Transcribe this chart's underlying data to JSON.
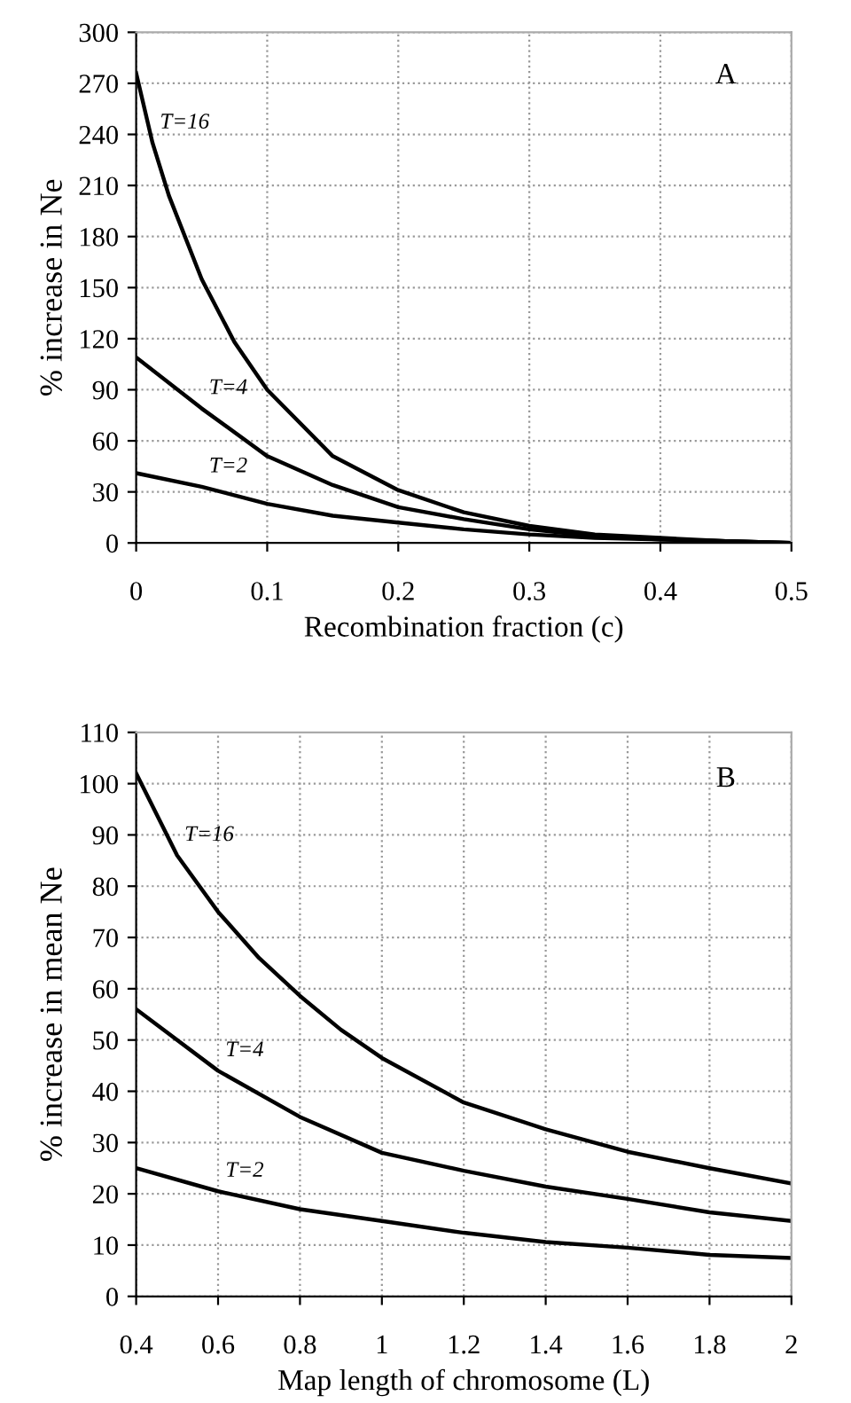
{
  "chart_data": [
    {
      "type": "line",
      "xlabel": "Recombination fraction (c)",
      "ylabel": "% increase in Ne",
      "annotations": [
        "A"
      ],
      "xlim": [
        0,
        0.5
      ],
      "xticks": [
        0,
        0.1,
        0.2,
        0.3,
        0.4,
        0.5
      ],
      "ylim": [
        0,
        300
      ],
      "yticks": [
        0,
        30,
        60,
        90,
        120,
        150,
        180,
        210,
        240,
        270,
        300
      ],
      "grid": true,
      "legend": false,
      "series": [
        {
          "name": "T=16",
          "color": "#000000",
          "x": [
            0,
            0.0125,
            0.025,
            0.05,
            0.075,
            0.1,
            0.15,
            0.2,
            0.25,
            0.3,
            0.35,
            0.4,
            0.45,
            0.5
          ],
          "values": [
            276,
            235,
            204,
            155,
            118,
            90,
            51,
            31,
            18,
            10,
            5,
            3,
            1,
            0
          ]
        },
        {
          "name": "T=4",
          "color": "#000000",
          "x": [
            0,
            0.05,
            0.1,
            0.15,
            0.2,
            0.25,
            0.3,
            0.35,
            0.4,
            0.45,
            0.5
          ],
          "values": [
            109,
            79,
            51,
            34,
            21,
            14,
            8,
            4,
            2,
            1,
            0
          ]
        },
        {
          "name": "T=2",
          "color": "#000000",
          "x": [
            0,
            0.05,
            0.1,
            0.15,
            0.2,
            0.25,
            0.3,
            0.35,
            0.4,
            0.45,
            0.5
          ],
          "values": [
            41,
            33,
            23,
            16,
            12,
            8,
            5,
            3,
            2,
            1,
            0
          ]
        }
      ]
    },
    {
      "type": "line",
      "xlabel": "Map length of chromosome (L)",
      "ylabel": "% increase in mean Ne",
      "annotations": [
        "B"
      ],
      "xlim": [
        0.4,
        2
      ],
      "xticks": [
        0.4,
        0.6,
        0.8,
        1,
        1.2,
        1.4,
        1.6,
        1.8,
        2
      ],
      "ylim": [
        0,
        110
      ],
      "yticks": [
        0,
        10,
        20,
        30,
        40,
        50,
        60,
        70,
        80,
        90,
        100,
        110
      ],
      "grid": true,
      "legend": false,
      "series": [
        {
          "name": "T=16",
          "color": "#000000",
          "x": [
            0.4,
            0.5,
            0.6,
            0.7,
            0.8,
            0.9,
            1.0,
            1.2,
            1.4,
            1.6,
            1.8,
            2.0
          ],
          "values": [
            102,
            86,
            75,
            66,
            58.6,
            52,
            46.5,
            37.8,
            32.6,
            28.2,
            25,
            22
          ]
        },
        {
          "name": "T=4",
          "color": "#000000",
          "x": [
            0.4,
            0.6,
            0.8,
            1.0,
            1.2,
            1.4,
            1.6,
            1.8,
            2.0
          ],
          "values": [
            56,
            44,
            35,
            28,
            24.5,
            21.4,
            19,
            16.4,
            14.7
          ]
        },
        {
          "name": "T=2",
          "color": "#000000",
          "x": [
            0.4,
            0.6,
            0.8,
            1.0,
            1.2,
            1.4,
            1.6,
            1.8,
            2.0
          ],
          "values": [
            25,
            20.5,
            17,
            14.7,
            12.4,
            10.6,
            9.5,
            8.1,
            7.5
          ]
        }
      ]
    }
  ]
}
